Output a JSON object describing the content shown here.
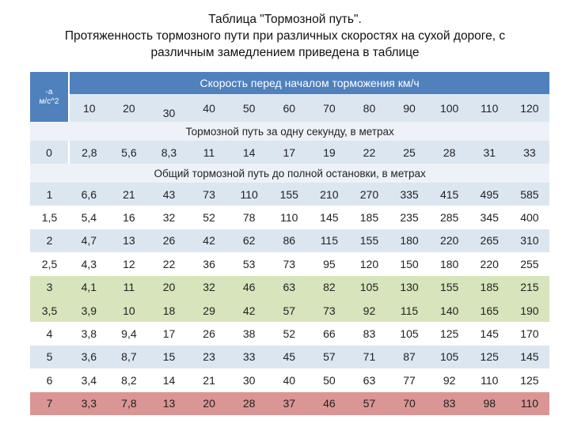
{
  "title": {
    "line1": "Таблица \"Тормозной путь\".",
    "line2": "Протяженность тормозного пути при различных скоростях на сухой дороге, с",
    "line3": "различным замедлением приведена в таблице"
  },
  "table": {
    "decel_header": [
      "-a",
      "м/с^2"
    ],
    "speed_header": "Скорость перед началом торможения км/ч",
    "speeds": [
      "10",
      "20",
      "30",
      "40",
      "50",
      "60",
      "70",
      "80",
      "90",
      "100",
      "110",
      "120"
    ],
    "per_second_caption": "Тормозной путь за одну секунду, в метрах",
    "per_second_row": {
      "decel": "0",
      "values": [
        "2,8",
        "5,6",
        "8,3",
        "11",
        "14",
        "17",
        "19",
        "22",
        "25",
        "28",
        "31",
        "33"
      ]
    },
    "total_caption": "Общий тормозной путь до полной остановки, в метрах",
    "rows": [
      {
        "decel": "1",
        "highlight": "blue",
        "values": [
          "6,6",
          "21",
          "43",
          "73",
          "110",
          "155",
          "210",
          "270",
          "335",
          "415",
          "495",
          "585"
        ]
      },
      {
        "decel": "1,5",
        "highlight": "white",
        "values": [
          "5,4",
          "16",
          "32",
          "52",
          "78",
          "110",
          "145",
          "185",
          "235",
          "285",
          "345",
          "400"
        ]
      },
      {
        "decel": "2",
        "highlight": "blue",
        "values": [
          "4,7",
          "13",
          "26",
          "42",
          "62",
          "86",
          "115",
          "155",
          "180",
          "220",
          "265",
          "310"
        ]
      },
      {
        "decel": "2,5",
        "highlight": "white",
        "values": [
          "4,3",
          "12",
          "22",
          "36",
          "53",
          "73",
          "95",
          "120",
          "150",
          "180",
          "220",
          "255"
        ]
      },
      {
        "decel": "3",
        "highlight": "green",
        "values": [
          "4,1",
          "11",
          "20",
          "32",
          "46",
          "63",
          "82",
          "105",
          "130",
          "155",
          "185",
          "215"
        ]
      },
      {
        "decel": "3,5",
        "highlight": "green",
        "values": [
          "3,9",
          "10",
          "18",
          "29",
          "42",
          "57",
          "73",
          "92",
          "115",
          "140",
          "165",
          "190"
        ]
      },
      {
        "decel": "4",
        "highlight": "white",
        "values": [
          "3,8",
          "9,4",
          "17",
          "26",
          "38",
          "52",
          "66",
          "83",
          "105",
          "125",
          "145",
          "170"
        ]
      },
      {
        "decel": "5",
        "highlight": "blue",
        "values": [
          "3,6",
          "8,7",
          "15",
          "23",
          "33",
          "45",
          "57",
          "71",
          "87",
          "105",
          "125",
          "145"
        ]
      },
      {
        "decel": "6",
        "highlight": "white",
        "values": [
          "3,4",
          "8,2",
          "14",
          "21",
          "30",
          "40",
          "50",
          "63",
          "77",
          "92",
          "110",
          "125"
        ]
      },
      {
        "decel": "7",
        "highlight": "red",
        "values": [
          "3,3",
          "7,8",
          "13",
          "20",
          "28",
          "37",
          "46",
          "57",
          "70",
          "83",
          "98",
          "110"
        ]
      }
    ]
  },
  "colors": {
    "header": "#4f81bd",
    "band_blue": "#dce6f1",
    "band_light": "#eef2f8",
    "highlight_green": "#d8e4bc",
    "highlight_red": "#da9694"
  }
}
